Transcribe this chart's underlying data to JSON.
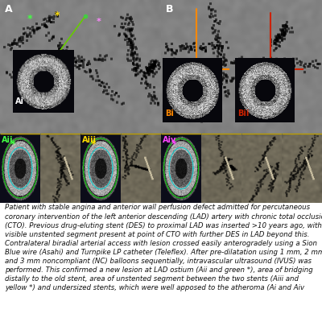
{
  "caption_lines": [
    "Patient with stable angina and anterior wall perfusion defect admitted for percutaneous",
    "coronary intervention of the left anterior descending (LAD) artery with chronic total occlusion",
    "(CTO). Previous drug-eluting stent (DES) to proximal LAD was inserted >10 years ago, with",
    "visible unstented segment present at point of CTO with further DES in LAD beyond this.",
    "Contralateral biradial arterial access with lesion crossed easily anterogradely using a Sion",
    "Blue wire (Asahi) and Turnpike LP catheter (Teleflex). After pre-dilatation using 1 mm, 2 mm",
    "and 3 mm noncompliant (NC) balloons sequentially, intravascular ultrasound (IVUS) was",
    "performed. This confirmed a new lesion at LAD ostium (Aii and green *), area of bridging",
    "distally to the old stent, area of unstented segment between the two stents (Aiii and",
    "yellow *) and undersized stents, which were well apposed to the atheroma (Ai and Aiv"
  ],
  "bg_color": "#ffffff",
  "box_Ai_color": "#66cc00",
  "box_Bi_color": "#ff8800",
  "box_Bii_color": "#cc2200",
  "arrow_orange_color": "#ff8800",
  "arrow_red_color": "#cc2200",
  "caption_fontsize": 6.2,
  "label_A": "A",
  "label_B": "B",
  "label_Ai": "Ai",
  "label_Bi": "Bi",
  "label_Bii": "Bii",
  "label_Aii": "Aii",
  "label_Aiii": "Aiii",
  "label_Aiv": "Aiv",
  "green_star_color": "#44ff44",
  "yellow_star_color": "#ffdd00",
  "pink_star_color": "#ff44ff",
  "green_dot_color": "#44cc44",
  "blue_bar_color": "#1a5a80",
  "gold_bar_color": "#c8a000"
}
